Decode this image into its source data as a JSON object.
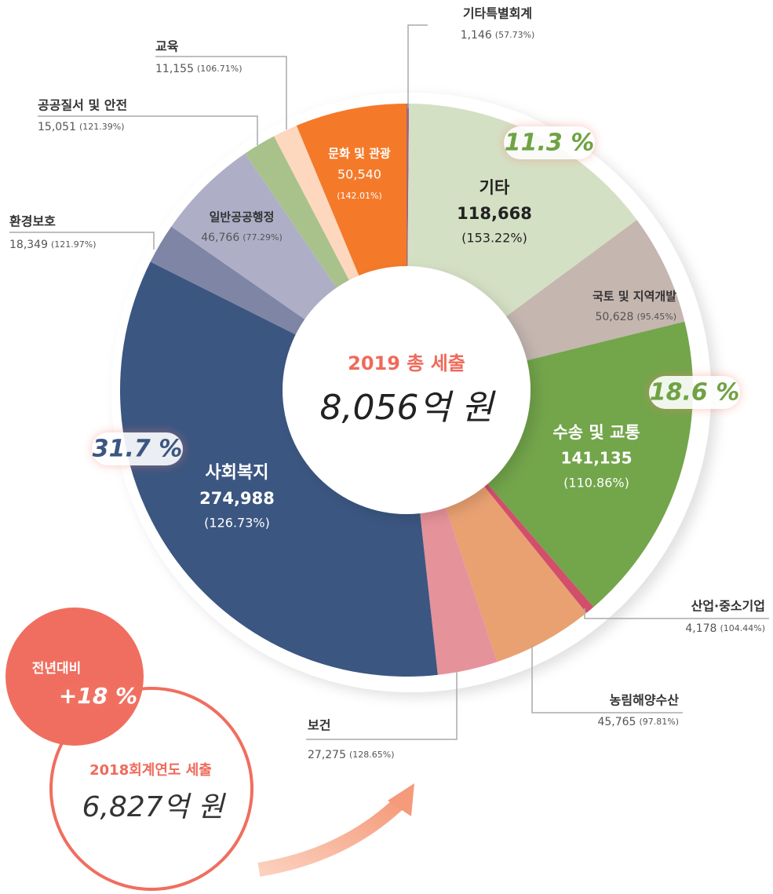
{
  "chart_data": {
    "type": "pie",
    "donut": true,
    "title": "2019 총 세출",
    "total_label": "8,056억 원",
    "categories": [
      "기타특별회계",
      "기타",
      "국토 및 지역개발",
      "수송 및 교통",
      "산업·중소기업",
      "농림해양수산",
      "보건",
      "사회복지",
      "환경보호",
      "일반공공행정",
      "공공질서 및 안전",
      "교육",
      "문화 및 관광"
    ],
    "values": [
      1146,
      118668,
      50628,
      141135,
      4178,
      45765,
      27275,
      274988,
      18349,
      46766,
      15051,
      11155,
      50540
    ],
    "value_labels": [
      "1,146",
      "118,668",
      "50,628",
      "141,135",
      "4,178",
      "45,765",
      "27,275",
      "274,988",
      "18,349",
      "46,766",
      "15,051",
      "11,155",
      "50,540"
    ],
    "rate_labels": [
      "(57.73%)",
      "(153.22%)",
      "(95.45%)",
      "(110.86%)",
      "(104.44%)",
      "(97.81%)",
      "(128.65%)",
      "(126.73%)",
      "(121.97%)",
      "(77.29%)",
      "(121.39%)",
      "(106.71%)",
      "(142.01%)"
    ],
    "colors": [
      "#a3667a",
      "#d4e0c4",
      "#c5b6b0",
      "#73a54b",
      "#d24f6c",
      "#e9a172",
      "#e6929a",
      "#3b5681",
      "#7f85a5",
      "#aeafc7",
      "#a9c28c",
      "#fdd8be",
      "#f47a2a"
    ],
    "annotations": [
      "11.3 %",
      "18.6 %",
      "31.7 %"
    ]
  },
  "comparison": {
    "label": "전년대비",
    "change": "+18 %",
    "prev_title": "2018회계연도 세출",
    "prev_total": "6,827억 원"
  }
}
